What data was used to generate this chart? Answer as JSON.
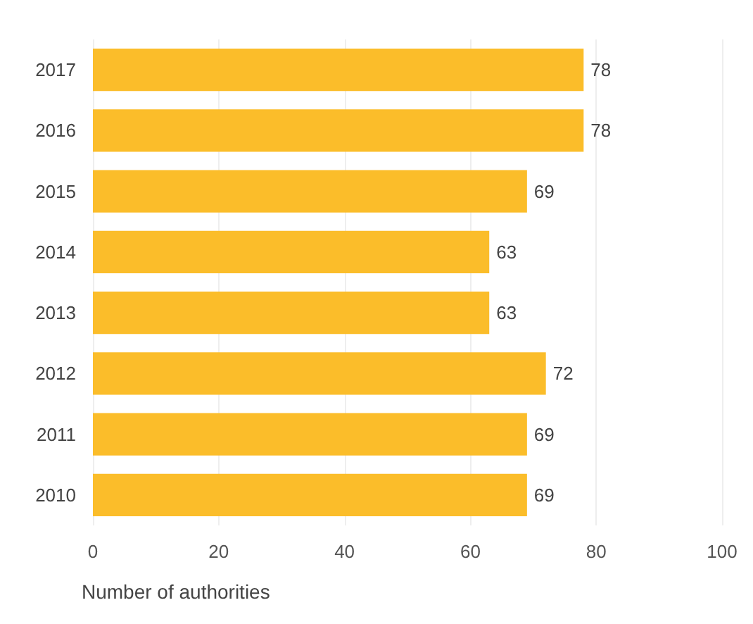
{
  "chart_data": {
    "type": "bar",
    "orientation": "horizontal",
    "categories": [
      "2017",
      "2016",
      "2015",
      "2014",
      "2013",
      "2012",
      "2011",
      "2010"
    ],
    "values": [
      78,
      78,
      69,
      63,
      63,
      72,
      69,
      69
    ],
    "color": "#fbbd2a",
    "data_labels": true,
    "xlabel": "Number of authorities",
    "xlim": [
      0,
      100
    ],
    "xticks": [
      0,
      20,
      40,
      60,
      80,
      100
    ],
    "grid": "x"
  }
}
